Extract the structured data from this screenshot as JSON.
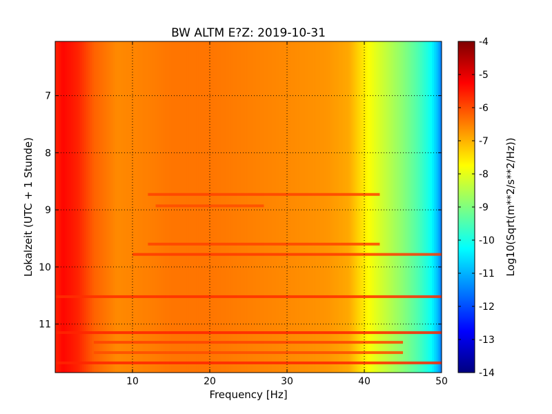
{
  "chart_data": {
    "type": "heatmap",
    "title": "BW ALTM E?Z: 2019-10-31",
    "xlabel": "Frequency [Hz]",
    "ylabel": "Lokalzeit (UTC + 1 Stunde)",
    "xlim": [
      0,
      50
    ],
    "ylim": [
      11.85,
      6.05
    ],
    "x_ticks": [
      "10",
      "20",
      "30",
      "40",
      "50"
    ],
    "x_tick_values": [
      10,
      20,
      30,
      40,
      50
    ],
    "y_ticks": [
      "7",
      "8",
      "9",
      "10",
      "11"
    ],
    "y_tick_values": [
      7,
      8,
      9,
      10,
      11
    ],
    "grid": true,
    "colorbar": {
      "label": "Log10(Sqrt(m**2/s**2/Hz))",
      "min": -14,
      "max": -4,
      "ticks": [
        "-4",
        "-5",
        "-6",
        "-7",
        "-8",
        "-9",
        "-10",
        "-11",
        "-12",
        "-13",
        "-14"
      ],
      "tick_values": [
        -4,
        -5,
        -6,
        -7,
        -8,
        -9,
        -10,
        -11,
        -12,
        -13,
        -14
      ],
      "colormap": "jet"
    },
    "frequency_profile": {
      "frequency_hz": [
        0,
        1,
        3,
        5,
        8,
        12,
        15,
        20,
        25,
        30,
        35,
        38,
        39.5,
        41,
        43,
        45,
        47,
        48.5,
        49.5,
        50
      ],
      "value": [
        -5.6,
        -5.3,
        -5.6,
        -6.2,
        -6.6,
        -6.5,
        -6.4,
        -6.4,
        -6.5,
        -6.6,
        -6.7,
        -6.9,
        -7.4,
        -7.9,
        -8.4,
        -8.9,
        -9.5,
        -10.1,
        -10.9,
        -11.6
      ]
    },
    "horizontal_bands": [
      {
        "time": 8.73,
        "from_hz": 12,
        "to_hz": 42,
        "value": -5.9
      },
      {
        "time": 8.93,
        "from_hz": 13,
        "to_hz": 27,
        "value": -6.0
      },
      {
        "time": 9.6,
        "from_hz": 12,
        "to_hz": 42,
        "value": -5.9
      },
      {
        "time": 9.78,
        "from_hz": 10,
        "to_hz": 50,
        "value": -5.8
      },
      {
        "time": 10.52,
        "from_hz": 0,
        "to_hz": 50,
        "value": -5.7
      },
      {
        "time": 11.15,
        "from_hz": 0,
        "to_hz": 50,
        "value": -5.6
      },
      {
        "time": 11.32,
        "from_hz": 5,
        "to_hz": 45,
        "value": -5.9
      },
      {
        "time": 11.5,
        "from_hz": 5,
        "to_hz": 45,
        "value": -6.0
      },
      {
        "time": 11.68,
        "from_hz": 0,
        "to_hz": 50,
        "value": -5.6
      }
    ]
  }
}
